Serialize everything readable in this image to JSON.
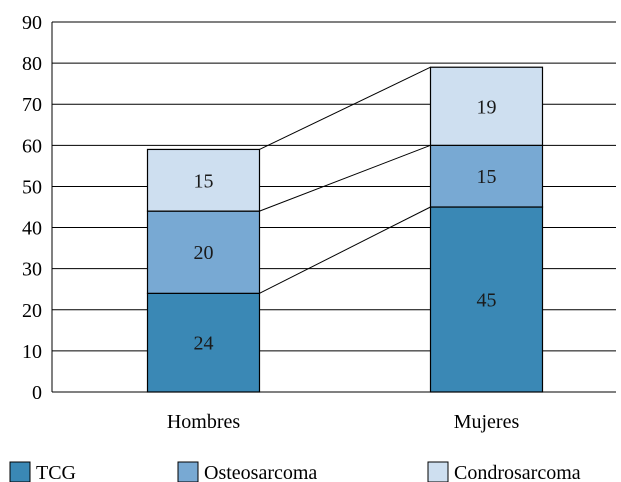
{
  "chart_data": {
    "type": "bar",
    "stacked": true,
    "categories": [
      "Hombres",
      "Mujeres"
    ],
    "series": [
      {
        "name": "TCG",
        "values": [
          24,
          45
        ],
        "color": "#3a88b5"
      },
      {
        "name": "Osteosarcoma",
        "values": [
          20,
          15
        ],
        "color": "#78a9d3"
      },
      {
        "name": "Condrosarcoma",
        "values": [
          15,
          19
        ],
        "color": "#cedff0"
      }
    ],
    "title": "",
    "xlabel": "",
    "ylabel": "",
    "ylim": [
      0,
      90
    ],
    "yticks": [
      0,
      10,
      20,
      30,
      40,
      50,
      60,
      70,
      80,
      90
    ],
    "grid": "horizontal",
    "legend": "bottom",
    "series_connector_lines": true
  }
}
